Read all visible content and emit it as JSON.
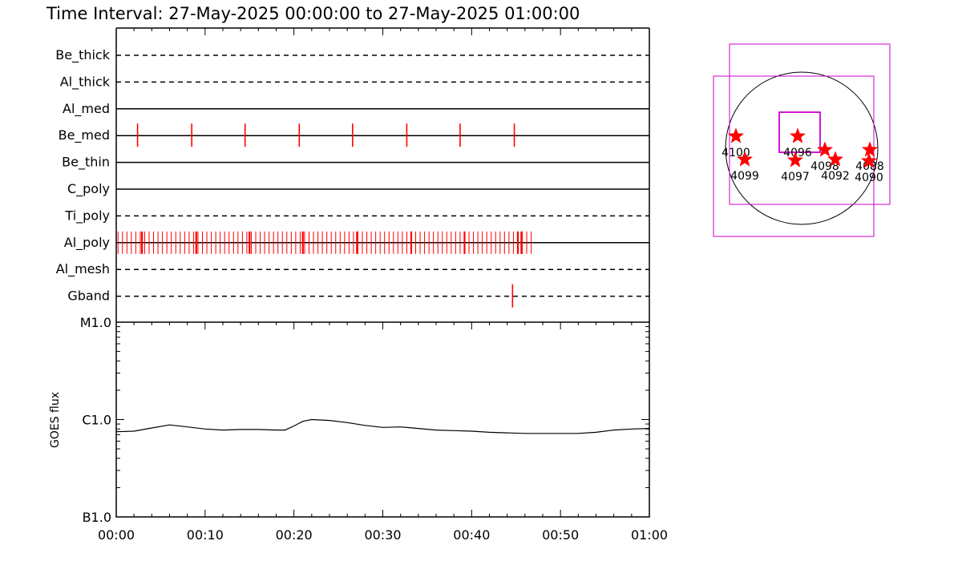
{
  "title": "Time Interval: 27-May-2025 00:00:00 to 27-May-2025 01:00:00",
  "colors": {
    "event": "#ff0000",
    "fov": "#cc00cc",
    "axis": "#000000"
  },
  "chart_data": [
    {
      "type": "timeline",
      "x_unit": "minutes",
      "xlim": [
        0,
        60
      ],
      "channels": [
        {
          "name": "Be_thick",
          "line": "dashed",
          "events": []
        },
        {
          "name": "Al_thick",
          "line": "dashed",
          "events": []
        },
        {
          "name": "Al_med",
          "line": "solid",
          "events": []
        },
        {
          "name": "Be_med",
          "line": "solid",
          "events": [
            2.4,
            8.5,
            14.5,
            20.6,
            26.6,
            32.7,
            38.7,
            44.8
          ]
        },
        {
          "name": "Be_thin",
          "line": "solid",
          "events": []
        },
        {
          "name": "C_poly",
          "line": "solid",
          "events": []
        },
        {
          "name": "Ti_poly",
          "line": "dashed",
          "events": []
        },
        {
          "name": "Al_poly",
          "line": "solid",
          "event_range": [
            0.2,
            47.1
          ],
          "event_spacing": 0.5,
          "bold_events": [
            2.9,
            9.0,
            15.0,
            21.0,
            27.1,
            33.2,
            39.2,
            45.2,
            45.6
          ]
        },
        {
          "name": "Al_mesh",
          "line": "dashed",
          "events": []
        },
        {
          "name": "Gband",
          "line": "dashed",
          "events": [
            44.6
          ]
        }
      ]
    },
    {
      "type": "line",
      "ylabel": "GOES flux",
      "y_scale": "log",
      "ylim": [
        1e-07,
        1e-05
      ],
      "ytick_labels": [
        {
          "value": 1e-07,
          "label": "B1.0"
        },
        {
          "value": 1e-06,
          "label": "C1.0"
        },
        {
          "value": 1e-05,
          "label": "M1.0"
        }
      ],
      "xlim": [
        0,
        60
      ],
      "xtick_labels": [
        "00:00",
        "00:10",
        "00:20",
        "00:30",
        "00:40",
        "00:50",
        "01:00"
      ],
      "series": [
        {
          "x": [
            0,
            2,
            4,
            6,
            8,
            10,
            12,
            14,
            16,
            18,
            19,
            20,
            21,
            22,
            24,
            26,
            28,
            30,
            32,
            34,
            36,
            38,
            40,
            42,
            44,
            46,
            48,
            50,
            52,
            54,
            56,
            58,
            60
          ],
          "y": [
            7.5e-07,
            7.6e-07,
            8.2e-07,
            8.8e-07,
            8.4e-07,
            8e-07,
            7.8e-07,
            7.9e-07,
            7.9e-07,
            7.8e-07,
            7.8e-07,
            8.6e-07,
            9.6e-07,
            1e-06,
            9.8e-07,
            9.3e-07,
            8.7e-07,
            8.3e-07,
            8.4e-07,
            8.1e-07,
            7.8e-07,
            7.7e-07,
            7.6e-07,
            7.4e-07,
            7.3e-07,
            7.2e-07,
            7.2e-07,
            7.2e-07,
            7.2e-07,
            7.4e-07,
            7.8e-07,
            8e-07,
            8.1e-07
          ]
        }
      ]
    },
    {
      "type": "scatter",
      "name": "solar disk map",
      "x_unit": "arcsec",
      "y_unit": "arcsec",
      "disk_radius": 950,
      "fov_boxes": [
        {
          "x": [
            -900,
            1100
          ],
          "y": [
            -700,
            1300
          ]
        },
        {
          "x": [
            -1100,
            900
          ],
          "y": [
            -1100,
            900
          ]
        },
        {
          "x": [
            -280,
            230
          ],
          "y": [
            -50,
            450
          ]
        }
      ],
      "points": [
        {
          "label": "4100",
          "x": -820,
          "y": 150
        },
        {
          "label": "4099",
          "x": -710,
          "y": -140
        },
        {
          "label": "4096",
          "x": -50,
          "y": 150
        },
        {
          "label": "4097",
          "x": -80,
          "y": -150
        },
        {
          "label": "4098",
          "x": 290,
          "y": -20
        },
        {
          "label": "4092",
          "x": 420,
          "y": -140
        },
        {
          "label": "4088",
          "x": 850,
          "y": -20
        },
        {
          "label": "4090",
          "x": 840,
          "y": -160
        }
      ]
    }
  ]
}
